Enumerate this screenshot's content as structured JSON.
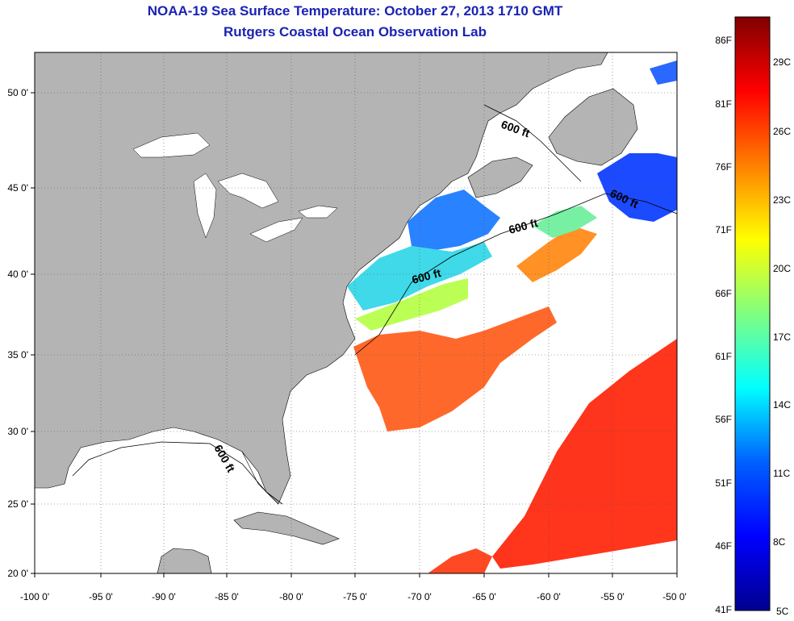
{
  "header": {
    "title": "NOAA-19 Sea Surface Temperature:  October 27, 2013 1710 GMT",
    "subtitle": "Rutgers Coastal Ocean Observation Lab"
  },
  "map": {
    "x_ticks": [
      "-100 0'",
      "-95 0'",
      "-90 0'",
      "-85 0'",
      "-80 0'",
      "-75 0'",
      "-70 0'",
      "-65 0'",
      "-60 0'",
      "-55 0'",
      "-50 0'"
    ],
    "y_ticks": [
      "50 0'",
      "45 0'",
      "40 0'",
      "35 0'",
      "30 0'",
      "25 0'",
      "20 0'"
    ],
    "contour_label": "600 ft",
    "land_color": "#b4b4b4",
    "water_color": "#ffffff"
  },
  "colorbar": {
    "f_labels": [
      "86F",
      "81F",
      "76F",
      "71F",
      "66F",
      "61F",
      "56F",
      "51F",
      "46F",
      "41F"
    ],
    "c_labels": [
      "29C",
      "26C",
      "23C",
      "20C",
      "17C",
      "14C",
      "11C",
      "8C",
      "5C"
    ],
    "colors": [
      "#00008f",
      "#0000ff",
      "#0080ff",
      "#00ffff",
      "#80ff80",
      "#ffff00",
      "#ff8000",
      "#ff0000",
      "#800000"
    ]
  }
}
